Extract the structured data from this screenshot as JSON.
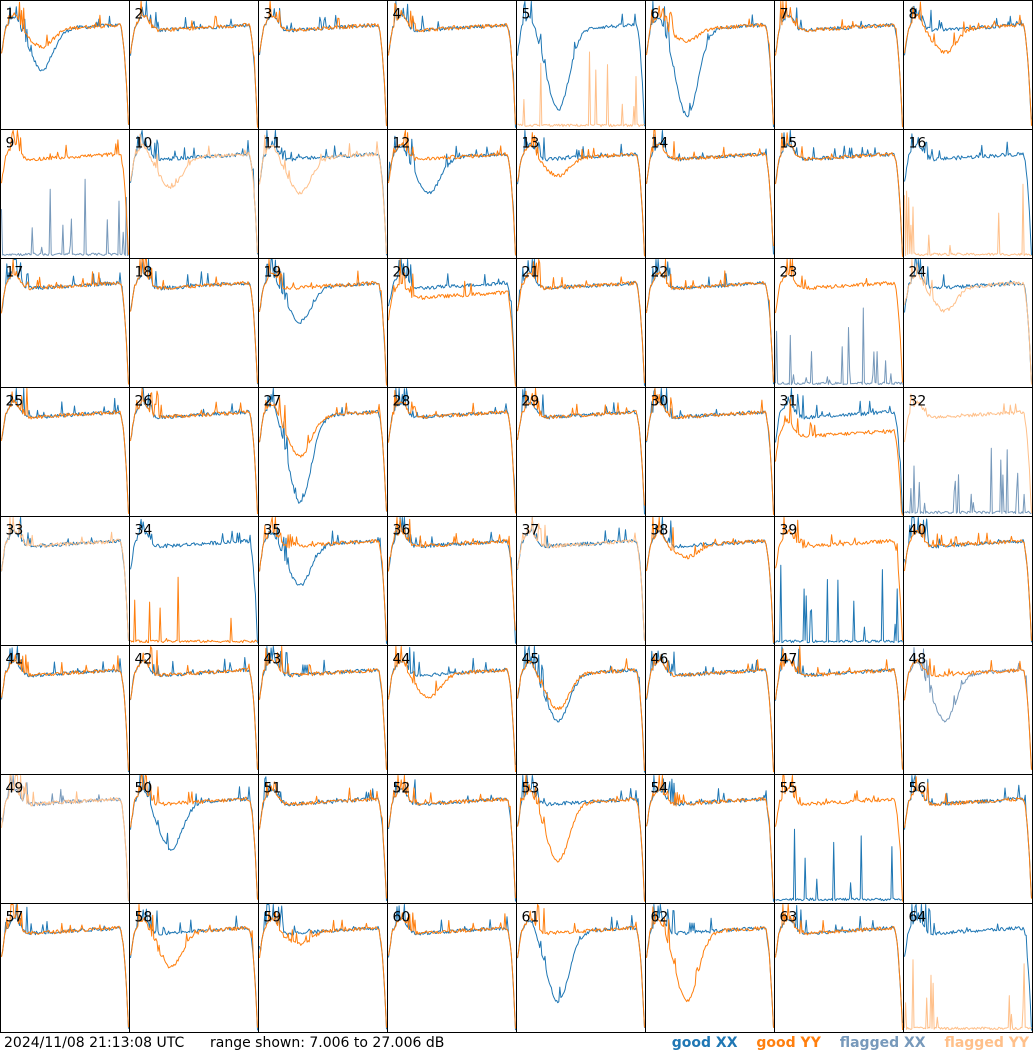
{
  "timestamp": "2024/11/08 21:13:08 UTC",
  "range_text": "range shown: 7.006 to 27.006 dB",
  "legend": [
    {
      "id": "good_xx",
      "label": "good XX",
      "color": "#1f77b4"
    },
    {
      "id": "good_yy",
      "label": "good YY",
      "color": "#ff7f0e"
    },
    {
      "id": "flagged_xx",
      "label": "flagged XX",
      "color": "#7799bb"
    },
    {
      "id": "flagged_yy",
      "label": "flagged YY",
      "color": "#ffc08a"
    }
  ],
  "chart_data": {
    "type": "line",
    "title": "",
    "ylim": [
      7.006,
      27.006
    ],
    "grid_rows": 8,
    "grid_cols": 8,
    "panels": [
      {
        "label": "1",
        "xx": "good",
        "yy": "good",
        "xx_dip": 0.35,
        "yy_dip": 0.15
      },
      {
        "label": "2",
        "xx": "good",
        "yy": "good"
      },
      {
        "label": "3",
        "xx": "good",
        "yy": "good"
      },
      {
        "label": "4",
        "xx": "good",
        "yy": "good"
      },
      {
        "label": "5",
        "xx": "good",
        "yy": "flagged",
        "xx_dip": 0.7,
        "yy_dead": true
      },
      {
        "label": "6",
        "xx": "good",
        "yy": "good",
        "xx_dip": 0.75,
        "yy_dip": 0.1
      },
      {
        "label": "7",
        "xx": "good",
        "yy": "good"
      },
      {
        "label": "8",
        "xx": "good",
        "yy": "good",
        "yy_dip": 0.2
      },
      {
        "label": "9",
        "xx": "flagged",
        "yy": "good",
        "xx_dead": true
      },
      {
        "label": "10",
        "xx": "good",
        "yy": "flagged",
        "yy_dip": 0.25
      },
      {
        "label": "11",
        "xx": "good",
        "yy": "flagged",
        "yy_dip": 0.3
      },
      {
        "label": "12",
        "xx": "good",
        "yy": "good",
        "xx_dip": 0.3
      },
      {
        "label": "13",
        "xx": "good",
        "yy": "good",
        "yy_dip": 0.15
      },
      {
        "label": "14",
        "xx": "good",
        "yy": "good"
      },
      {
        "label": "15",
        "xx": "good",
        "yy": "good"
      },
      {
        "label": "16",
        "xx": "good",
        "yy": "flagged",
        "yy_dead": true
      },
      {
        "label": "17",
        "xx": "good",
        "yy": "good"
      },
      {
        "label": "18",
        "xx": "good",
        "yy": "good"
      },
      {
        "label": "19",
        "xx": "good",
        "yy": "good",
        "xx_dip": 0.3
      },
      {
        "label": "20",
        "xx": "good",
        "yy": "good",
        "yy_offset": -1.5
      },
      {
        "label": "21",
        "xx": "good",
        "yy": "good"
      },
      {
        "label": "22",
        "xx": "good",
        "yy": "good"
      },
      {
        "label": "23",
        "xx": "flagged",
        "yy": "good",
        "xx_dead": true
      },
      {
        "label": "24",
        "xx": "good",
        "yy": "flagged",
        "yy_dip": 0.2
      },
      {
        "label": "25",
        "xx": "good",
        "yy": "good"
      },
      {
        "label": "26",
        "xx": "good",
        "yy": "good"
      },
      {
        "label": "27",
        "xx": "good",
        "yy": "good",
        "xx_dip": 0.75,
        "yy_dip": 0.35
      },
      {
        "label": "28",
        "xx": "good",
        "yy": "good"
      },
      {
        "label": "29",
        "xx": "good",
        "yy": "good"
      },
      {
        "label": "30",
        "xx": "good",
        "yy": "good"
      },
      {
        "label": "31",
        "xx": "good",
        "yy": "good",
        "yy_offset": -3
      },
      {
        "label": "32",
        "xx": "flagged",
        "yy": "flagged",
        "xx_dead": true
      },
      {
        "label": "33",
        "xx": "good",
        "yy": "flagged"
      },
      {
        "label": "34",
        "xx": "good",
        "yy": "good",
        "yy_dead": true
      },
      {
        "label": "35",
        "xx": "good",
        "yy": "good",
        "xx_dip": 0.35
      },
      {
        "label": "36",
        "xx": "good",
        "yy": "good"
      },
      {
        "label": "37",
        "xx": "good",
        "yy": "flagged"
      },
      {
        "label": "38",
        "xx": "good",
        "yy": "good",
        "yy_dip": 0.1
      },
      {
        "label": "39",
        "xx": "good",
        "yy": "good",
        "xx_dead": true
      },
      {
        "label": "40",
        "xx": "good",
        "yy": "good"
      },
      {
        "label": "41",
        "xx": "good",
        "yy": "good"
      },
      {
        "label": "42",
        "xx": "good",
        "yy": "good"
      },
      {
        "label": "43",
        "xx": "good",
        "yy": "good"
      },
      {
        "label": "44",
        "xx": "good",
        "yy": "good",
        "yy_dip": 0.2
      },
      {
        "label": "45",
        "xx": "good",
        "yy": "good",
        "xx_dip": 0.4,
        "yy_dip": 0.3
      },
      {
        "label": "46",
        "xx": "good",
        "yy": "good"
      },
      {
        "label": "47",
        "xx": "good",
        "yy": "good"
      },
      {
        "label": "48",
        "xx": "flagged",
        "yy": "good",
        "xx_dip": 0.4
      },
      {
        "label": "49",
        "xx": "flagged",
        "yy": "flagged"
      },
      {
        "label": "50",
        "xx": "good",
        "yy": "good",
        "xx_dip": 0.4
      },
      {
        "label": "51",
        "xx": "good",
        "yy": "good"
      },
      {
        "label": "52",
        "xx": "good",
        "yy": "good"
      },
      {
        "label": "53",
        "xx": "good",
        "yy": "good",
        "yy_dip": 0.5
      },
      {
        "label": "54",
        "xx": "good",
        "yy": "good"
      },
      {
        "label": "55",
        "xx": "good",
        "yy": "good",
        "xx_dead": true
      },
      {
        "label": "56",
        "xx": "good",
        "yy": "good"
      },
      {
        "label": "57",
        "xx": "good",
        "yy": "good"
      },
      {
        "label": "58",
        "xx": "good",
        "yy": "good",
        "yy_dip": 0.3
      },
      {
        "label": "59",
        "xx": "good",
        "yy": "good",
        "yy_dip": 0.1
      },
      {
        "label": "60",
        "xx": "good",
        "yy": "good"
      },
      {
        "label": "61",
        "xx": "good",
        "yy": "good",
        "xx_dip": 0.6
      },
      {
        "label": "62",
        "xx": "good",
        "yy": "good",
        "yy_dip": 0.6
      },
      {
        "label": "63",
        "xx": "good",
        "yy": "good"
      },
      {
        "label": "64",
        "xx": "good",
        "yy": "flagged",
        "yy_dead": true
      }
    ]
  }
}
